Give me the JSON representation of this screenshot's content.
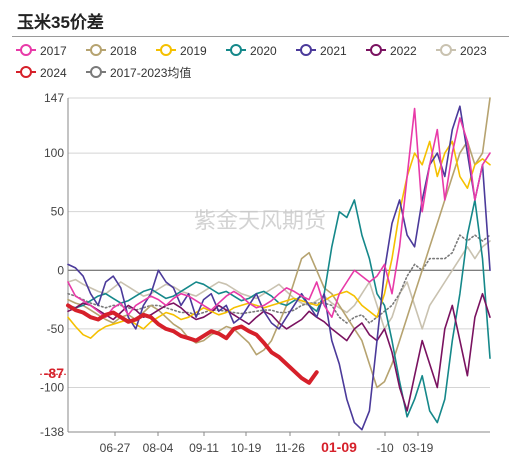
{
  "title": "玉米35价差",
  "watermark": "紫金天风期货",
  "colors": {
    "2017": "#e83aa8",
    "2018": "#b6a370",
    "2019": "#f5c000",
    "2020": "#15888a",
    "2021": "#4b3a9a",
    "2022": "#7a1260",
    "2023": "#c9c2b0",
    "2024": "#d6202a",
    "avg": "#7a7a7a",
    "highlight": "#d6202a"
  },
  "chart_data": {
    "type": "line",
    "title": "玉米35价差",
    "xlabel": "",
    "ylabel": "",
    "ylim": [
      -138,
      147
    ],
    "yticks": [
      147,
      100,
      50,
      0,
      -50,
      -100,
      -138
    ],
    "xticks": [
      "06-27",
      "08-04",
      "09-11",
      "10-19",
      "11-26",
      "01-09",
      "-10",
      "03-19"
    ],
    "highlight_tick": "01-09",
    "highlight_value": -87,
    "grid": true,
    "legend_position": "top",
    "series": [
      {
        "name": "2017",
        "key": "2017",
        "style": "solid",
        "values": [
          -10,
          -22,
          -26,
          -30,
          -35,
          -40,
          -32,
          -28,
          -38,
          -30,
          -26,
          -22,
          -25,
          -30,
          -24,
          -20,
          -22,
          -26,
          -30,
          -34,
          -28,
          -22,
          -18,
          -22,
          -28,
          -32,
          -30,
          -26,
          -20,
          -15,
          -18,
          -22,
          -25,
          -10,
          -30,
          -40,
          -20,
          -10,
          0,
          -5,
          -10,
          -5,
          5,
          -20,
          20,
          80,
          138,
          50,
          90,
          120,
          60,
          100,
          130,
          110,
          60,
          90,
          100
        ]
      },
      {
        "name": "2018",
        "key": "2018",
        "style": "solid",
        "values": [
          -25,
          -28,
          -30,
          -34,
          -38,
          -42,
          -45,
          -40,
          -38,
          -42,
          -36,
          -30,
          -34,
          -40,
          -46,
          -50,
          -58,
          -62,
          -60,
          -55,
          -52,
          -48,
          -50,
          -56,
          -62,
          -72,
          -68,
          -60,
          -45,
          -30,
          -10,
          10,
          15,
          0,
          -15,
          -20,
          -30,
          -40,
          -50,
          -60,
          -80,
          -100,
          -95,
          -80,
          -60,
          -40,
          -20,
          0,
          20,
          40,
          60,
          80,
          100,
          110,
          90,
          100,
          147
        ]
      },
      {
        "name": "2019",
        "key": "2019",
        "style": "solid",
        "values": [
          -40,
          -48,
          -55,
          -58,
          -52,
          -48,
          -46,
          -44,
          -42,
          -46,
          -50,
          -44,
          -40,
          -36,
          -38,
          -42,
          -40,
          -36,
          -32,
          -35,
          -38,
          -36,
          -32,
          -30,
          -28,
          -30,
          -32,
          -30,
          -28,
          -26,
          -24,
          -26,
          -28,
          -30,
          -26,
          -22,
          -20,
          -18,
          -22,
          -30,
          -35,
          -40,
          -20,
          10,
          50,
          80,
          100,
          90,
          110,
          80,
          100,
          110,
          80,
          70,
          90,
          95,
          90
        ]
      },
      {
        "name": "2020",
        "key": "2020",
        "style": "solid",
        "values": [
          -30,
          -32,
          -30,
          -26,
          -22,
          -20,
          -24,
          -28,
          -26,
          -22,
          -18,
          -16,
          -20,
          -24,
          -22,
          -18,
          -14,
          -10,
          -12,
          -16,
          -20,
          -18,
          -22,
          -26,
          -24,
          -20,
          -18,
          -22,
          -28,
          -30,
          -26,
          -22,
          -30,
          -35,
          -20,
          20,
          50,
          45,
          60,
          30,
          10,
          -20,
          -30,
          -60,
          -95,
          -125,
          -110,
          -90,
          -120,
          -130,
          -110,
          -60,
          -20,
          30,
          60,
          10,
          -75
        ]
      },
      {
        "name": "2021",
        "key": "2021",
        "style": "solid",
        "values": [
          5,
          2,
          -5,
          -20,
          -30,
          -10,
          -5,
          -15,
          -40,
          -50,
          -30,
          -20,
          0,
          -10,
          -15,
          -30,
          -20,
          -40,
          -25,
          -20,
          -35,
          -30,
          -45,
          -40,
          -30,
          -20,
          -35,
          -45,
          -50,
          -40,
          -30,
          -20,
          -30,
          -40,
          -20,
          -60,
          -80,
          -110,
          -130,
          -136,
          -120,
          -60,
          0,
          40,
          60,
          30,
          20,
          60,
          90,
          100,
          80,
          120,
          140,
          100,
          60,
          90,
          0
        ]
      },
      {
        "name": "2022",
        "key": "2022",
        "style": "solid",
        "values": [
          -35,
          -32,
          -28,
          -30,
          -34,
          -38,
          -42,
          -36,
          -30,
          -34,
          -40,
          -38,
          -34,
          -30,
          -28,
          -32,
          -38,
          -42,
          -40,
          -36,
          -30,
          -34,
          -38,
          -42,
          -46,
          -40,
          -35,
          -38,
          -45,
          -50,
          -46,
          -42,
          -35,
          -40,
          -44,
          -50,
          -55,
          -60,
          -50,
          -45,
          -55,
          -60,
          -50,
          -70,
          -100,
          -120,
          -90,
          -60,
          -80,
          -100,
          -50,
          -30,
          -60,
          -90,
          -40,
          -20,
          -40
        ]
      },
      {
        "name": "2023",
        "key": "2023",
        "style": "solid",
        "values": [
          -10,
          -8,
          -12,
          -15,
          -18,
          -20,
          -15,
          -10,
          -14,
          -18,
          -22,
          -20,
          -16,
          -12,
          -14,
          -18,
          -20,
          -22,
          -18,
          -14,
          -10,
          -12,
          -16,
          -20,
          -22,
          -24,
          -20,
          -16,
          -12,
          -18,
          -24,
          -28,
          -30,
          -26,
          -22,
          -28,
          -32,
          -36,
          -30,
          -20,
          -10,
          -30,
          -50,
          -40,
          -20,
          -10,
          -30,
          -50,
          -30,
          -20,
          -10,
          0,
          10,
          20,
          10,
          20,
          25
        ]
      },
      {
        "name": "2024",
        "key": "2024",
        "style": "bold",
        "values": [
          -30,
          -34,
          -36,
          -40,
          -42,
          -38,
          -36,
          -40,
          -44,
          -42,
          -38,
          -40,
          -46,
          -50,
          -52,
          -56,
          -58,
          -60,
          -56,
          -52,
          -54,
          -58,
          -50,
          -48,
          -52,
          -55,
          -62,
          -70,
          -74,
          -80,
          -86,
          -92,
          -96,
          -87
        ]
      },
      {
        "name": "2017-2023均值",
        "key": "avg",
        "style": "dotted",
        "values": [
          -20,
          -22,
          -25,
          -28,
          -30,
          -32,
          -30,
          -30,
          -32,
          -34,
          -32,
          -30,
          -30,
          -32,
          -34,
          -36,
          -36,
          -38,
          -36,
          -34,
          -34,
          -35,
          -36,
          -37,
          -36,
          -35,
          -34,
          -34,
          -36,
          -36,
          -34,
          -30,
          -28,
          -28,
          -28,
          -30,
          -40,
          -45,
          -40,
          -38,
          -45,
          -40,
          -35,
          -30,
          -20,
          -5,
          5,
          0,
          10,
          10,
          10,
          15,
          30,
          25,
          30,
          25,
          30
        ]
      }
    ]
  }
}
